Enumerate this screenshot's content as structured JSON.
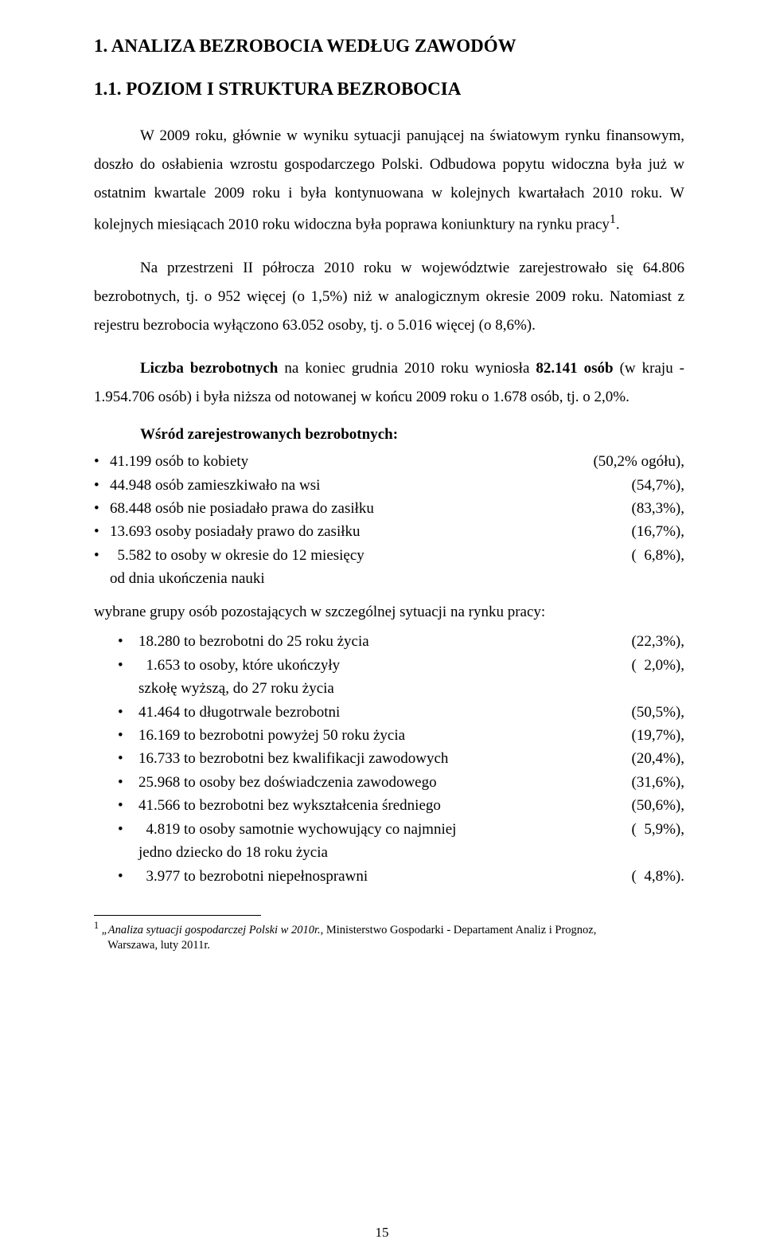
{
  "h1": "1. ANALIZA BEZROBOCIA WEDŁUG ZAWODÓW",
  "h2": "1.1. POZIOM I STRUKTURA BEZROBOCIA",
  "p1a": "W 2009 roku, głównie w wyniku sytuacji panującej na światowym rynku",
  "p1b": "finansowym, doszło do osłabienia wzrostu gospodarczego Polski. Odbudowa popytu widoczna była już w ostatnim kwartale 2009 roku i była kontynuowana w kolejnych kwartałach 2010 roku. W kolejnych miesiącach 2010 roku widoczna była poprawa koniunktury na rynku pracy",
  "p1sup": "1",
  "p1end": ".",
  "p2a": "Na przestrzeni II półrocza 2010 roku w województwie zarejestrowało się",
  "p2b": "64.806 bezrobotnych, tj. o 952 więcej (o 1,5%) niż w analogicznym okresie 2009 roku. Natomiast z rejestru bezrobocia wyłączono 63.052 osoby, tj. o 5.016 więcej (o 8,6%).",
  "p3a": "Liczba bezrobotnych",
  "p3b": " na koniec grudnia 2010 roku wyniosła ",
  "p3c": "82.141 osób",
  "p3d": "(w kraju - 1.954.706 osób) i była niższa od notowanej w końcu 2009 roku o 1.678 osób, tj. o 2,0%.",
  "sub": "Wśród zarejestrowanych bezrobotnych:",
  "outer": [
    {
      "label": "41.199 osób to kobiety",
      "pct": "(50,2% ogółu),"
    },
    {
      "label": "44.948 osób zamieszkiwało na wsi",
      "pct": "(54,7%),"
    },
    {
      "label": "68.448 osób nie posiadało prawa do zasiłku",
      "pct": "(83,3%),"
    },
    {
      "label": "13.693 osoby posiadały prawo do zasiłku",
      "pct": "(16,7%),"
    },
    {
      "label": "  5.582 to osoby w okresie do 12 miesięcy\nod dnia ukończenia nauki",
      "pct": "(  6,8%),"
    }
  ],
  "intro2": "wybrane grupy osób pozostających w szczególnej sytuacji na rynku pracy:",
  "inner": [
    {
      "label": "18.280 to bezrobotni do 25 roku życia",
      "pct": "(22,3%),"
    },
    {
      "label": "  1.653 to osoby, które ukończyły\nszkołę wyższą, do 27 roku życia",
      "pct": "(  2,0%),"
    },
    {
      "label": "41.464 to długotrwale bezrobotni",
      "pct": "(50,5%),"
    },
    {
      "label": "16.169 to bezrobotni powyżej 50 roku życia",
      "pct": "(19,7%),"
    },
    {
      "label": "16.733 to bezrobotni bez kwalifikacji zawodowych",
      "pct": "(20,4%),"
    },
    {
      "label": "25.968 to osoby bez doświadczenia zawodowego",
      "pct": "(31,6%),"
    },
    {
      "label": "41.566 to bezrobotni bez wykształcenia średniego",
      "pct": "(50,6%),"
    },
    {
      "label": "  4.819 to osoby samotnie wychowujący co najmniej\njedno dziecko do 18 roku życia",
      "pct": "(  5,9%),"
    },
    {
      "label": "  3.977 to bezrobotni niepełnosprawni",
      "pct": "(  4,8%)."
    }
  ],
  "fn_sup": "1",
  "fn_italic": " „Analiza sytuacji gospodarczej Polski w 2010r.,",
  "fn_rest": " Ministerstwo Gospodarki - Departament Analiz i Prognoz,\n  Warszawa, luty 2011r.",
  "pagenum": "15"
}
